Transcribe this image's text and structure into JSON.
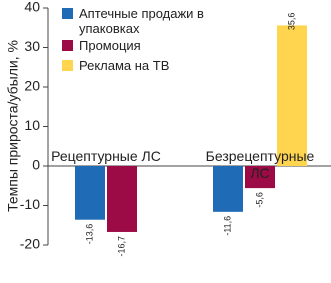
{
  "chart_data": {
    "type": "bar",
    "y_label": "Темпы прироста/убыли, %",
    "categories": [
      "Рецептурные ЛС",
      "Безрецептурные ЛС"
    ],
    "series": [
      {
        "name": "Аптечные продажи в упаковках",
        "color": "#1f6bb5",
        "values": [
          -13.6,
          -11.6
        ],
        "value_labels": [
          "-13,6",
          "-11,6"
        ]
      },
      {
        "name": "Промоция",
        "color": "#9c0b45",
        "values": [
          -16.7,
          -5.6
        ],
        "value_labels": [
          "-16,7",
          "-5,6"
        ]
      },
      {
        "name": "Реклама на ТВ",
        "color": "#ffd54f",
        "values": [
          null,
          35.6
        ],
        "value_labels": [
          null,
          "35,6"
        ]
      }
    ],
    "ylim": [
      -20,
      40
    ],
    "yticks": [
      -20,
      -10,
      0,
      10,
      20,
      30,
      40
    ],
    "legend": "top-left"
  }
}
